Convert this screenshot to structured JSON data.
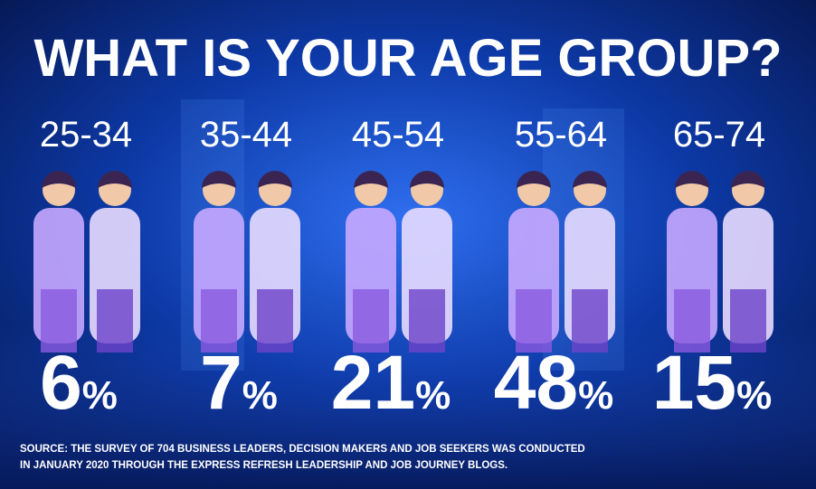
{
  "title": "WHAT IS YOUR AGE GROUP?",
  "groups": [
    {
      "label": "25-34",
      "number": 6,
      "unit": "%"
    },
    {
      "label": "35-44",
      "number": 7,
      "unit": "%"
    },
    {
      "label": "45-54",
      "number": 21,
      "unit": "%"
    },
    {
      "label": "55-64",
      "number": 48,
      "unit": "%"
    },
    {
      "label": "65-74",
      "number": 15,
      "unit": "%"
    }
  ],
  "source": [
    "SOURCE: THE SURVEY OF 704 BUSINESS LEADERS, DECISION MAKERS AND JOB SEEKERS WAS CONDUCTED",
    "IN JANUARY 2020 THROUGH THE EXPRESS REFRESH LEADERSHIP AND JOB JOURNEY BLOGS."
  ]
}
